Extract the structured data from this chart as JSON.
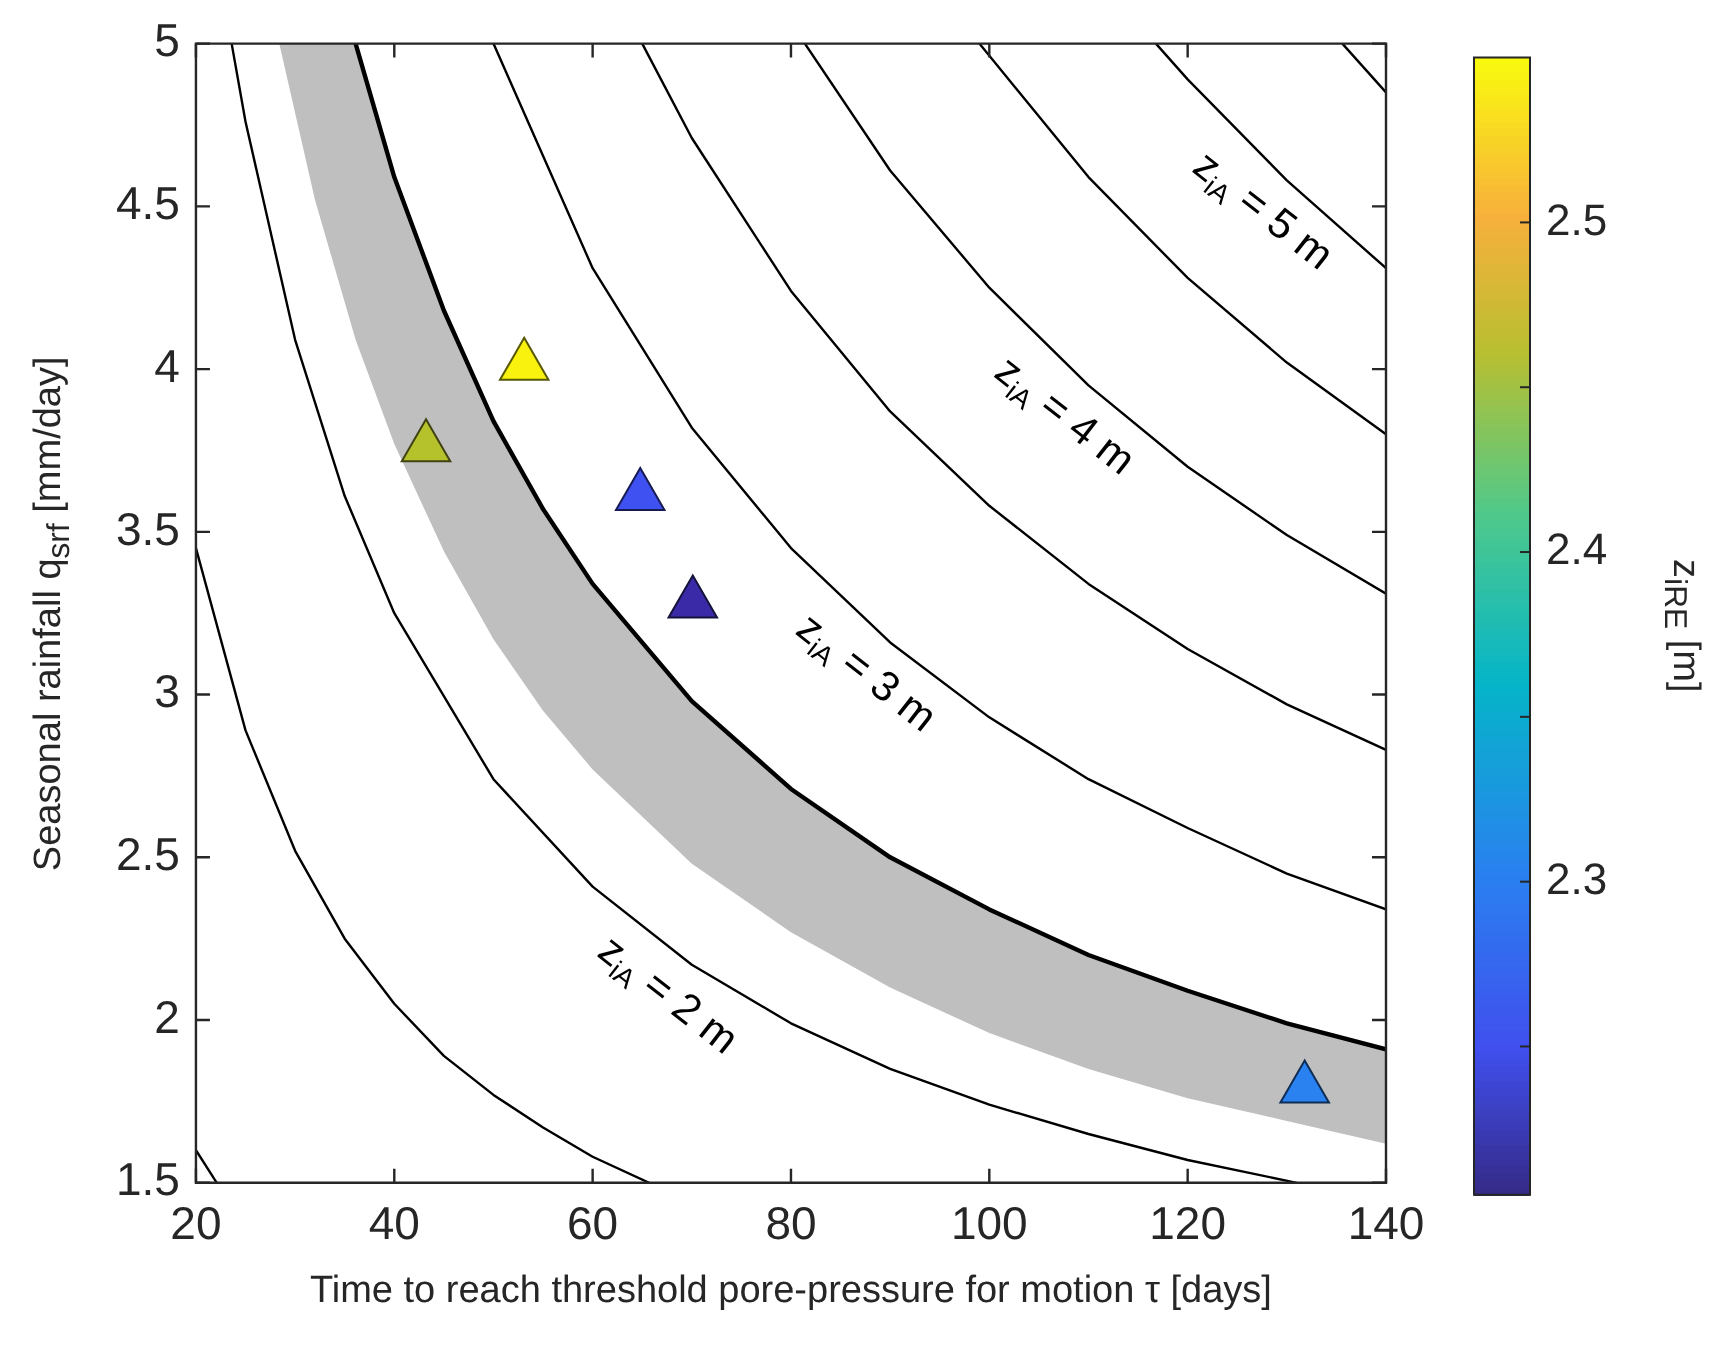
{
  "chart_data": {
    "type": "line",
    "xlabel": "Time to reach threshold pore-pressure for motion τ [days]",
    "ylabel": "Seasonal rainfall q$_{srf}$ [mm/day]",
    "clabel": "z$_{iRE}$ [m]",
    "xlim": [
      20,
      140
    ],
    "xticks": [
      20,
      40,
      60,
      80,
      100,
      120,
      140
    ],
    "ylim": [
      1.5,
      5
    ],
    "yticks": [
      1.5,
      2,
      2.5,
      3,
      3.5,
      4,
      4.5,
      5
    ],
    "clim": [
      2.205,
      2.55
    ],
    "cticks": [
      {
        "value": 2.25,
        "label": null
      },
      2.3,
      {
        "value": 2.35,
        "label": null
      },
      2.4,
      {
        "value": 2.45,
        "label": null
      },
      2.5
    ],
    "grid": false,
    "legend": false,
    "series": [
      {
        "type": "line",
        "color": "#000000",
        "x": [
          20,
          22.1
        ],
        "values": [
          1.6,
          1.5
        ]
      },
      {
        "type": "line",
        "color": "#000000",
        "x": [
          20,
          25,
          30,
          35,
          40,
          45,
          50,
          55,
          60,
          65.7
        ],
        "values": [
          3.45,
          2.89,
          2.52,
          2.25,
          2.05,
          1.89,
          1.77,
          1.67,
          1.58,
          1.5
        ]
      },
      {
        "type": "line",
        "color": "#000000",
        "x": [
          23.6,
          25,
          30,
          35,
          40,
          50,
          60,
          70,
          80,
          90,
          100,
          110,
          120,
          131
        ],
        "values": [
          5,
          4.76,
          4.09,
          3.61,
          3.25,
          2.74,
          2.41,
          2.17,
          1.99,
          1.85,
          1.74,
          1.65,
          1.57,
          1.5
        ]
      },
      {
        "type": "line",
        "color": "#000000",
        "x": [
          28.4,
          32,
          36.1,
          40,
          45,
          50,
          55,
          60,
          70,
          80,
          90,
          100,
          110,
          120,
          130,
          140
        ],
        "values": [
          null,
          null,
          5,
          4.59,
          4.18,
          3.84,
          3.57,
          3.34,
          2.98,
          2.71,
          2.5,
          2.34,
          2.2,
          2.09,
          1.99,
          1.91
        ],
        "upper": [
          5,
          5,
          5,
          4.59,
          4.18,
          3.84,
          3.57,
          3.34,
          2.98,
          2.71,
          2.5,
          2.34,
          2.2,
          2.09,
          1.99,
          1.91
        ],
        "lower": [
          5,
          4.52,
          4.09,
          3.77,
          3.44,
          3.17,
          2.95,
          2.77,
          2.48,
          2.27,
          2.1,
          1.96,
          1.85,
          1.76,
          1.69,
          1.62
        ]
      },
      {
        "type": "line",
        "color": "#000000",
        "x": [
          50,
          60,
          70,
          80,
          90,
          100,
          110,
          120,
          130,
          140
        ],
        "values": [
          5,
          4.31,
          3.82,
          3.45,
          3.16,
          2.93,
          2.74,
          2.59,
          2.45,
          2.34
        ]
      },
      {
        "type": "line",
        "color": "#000000",
        "x": [
          65,
          70,
          80,
          90,
          100,
          110,
          120,
          130,
          140
        ],
        "values": [
          5,
          4.71,
          4.24,
          3.87,
          3.58,
          3.34,
          3.14,
          2.97,
          2.83
        ]
      },
      {
        "type": "line",
        "color": "#000000",
        "x": [
          81.4,
          90,
          100,
          110,
          120,
          130,
          140
        ],
        "values": [
          5,
          4.61,
          4.25,
          3.95,
          3.7,
          3.49,
          3.31
        ]
      },
      {
        "type": "line",
        "color": "#000000",
        "x": [
          99,
          110,
          120,
          130,
          140
        ],
        "values": [
          5,
          4.59,
          4.28,
          4.02,
          3.8
        ]
      },
      {
        "type": "line",
        "color": "#000000",
        "x": [
          116.8,
          120,
          130,
          140
        ],
        "values": [
          5,
          4.89,
          4.58,
          4.31
        ]
      },
      {
        "type": "line",
        "color": "#000000",
        "x": [
          135.6,
          140
        ],
        "values": [
          5,
          4.85
        ]
      },
      {
        "type": "scatter",
        "marker": "triangle",
        "x": [
          53.1,
          43.2,
          64.8,
          70.1,
          131.8
        ],
        "values": [
          4.01,
          3.76,
          3.61,
          3.28,
          1.79
        ],
        "cvalues": [
          2.55,
          2.46,
          2.25,
          2.22,
          2.3
        ],
        "colors": [
          "#f9f20f",
          "#b5c22c",
          "#3f51f0",
          "#3a2aa8",
          "#2a82f0"
        ]
      }
    ],
    "annotations": [
      {
        "text": "z$_{iA}$ = 2 m",
        "x": 70,
        "y": 2.17
      },
      {
        "text": "z$_{iA}$ = 3 m",
        "x": 90,
        "y": 3.16
      },
      {
        "text": "z$_{iA}$ = 4 m",
        "x": 110,
        "y": 3.95
      },
      {
        "text": "z$_{iA}$ = 5 m",
        "x": 130,
        "y": 4.58
      }
    ]
  }
}
